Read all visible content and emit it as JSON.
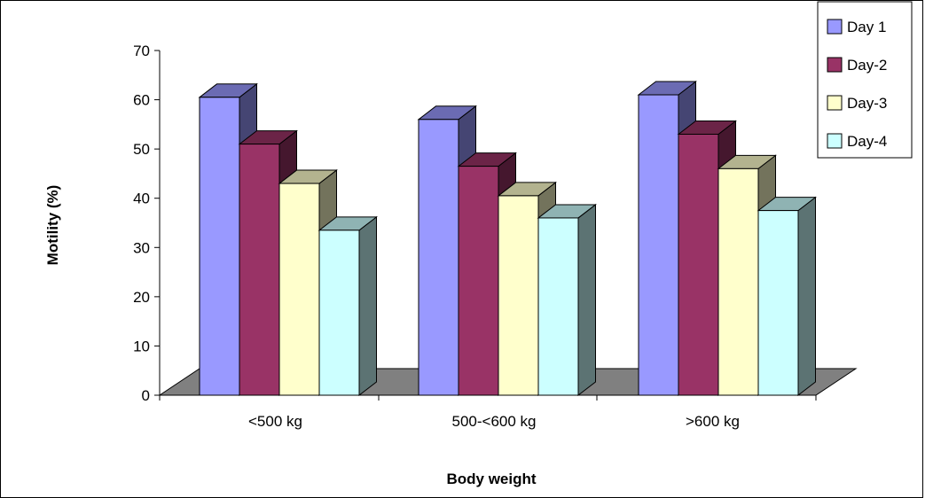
{
  "chart_data": {
    "type": "bar",
    "categories": [
      "<500 kg",
      "500-<600 kg",
      ">600 kg"
    ],
    "series": [
      {
        "name": "Day 1",
        "values": [
          60.5,
          56,
          61
        ],
        "color": "#9999ff"
      },
      {
        "name": "Day-2",
        "values": [
          51,
          46.5,
          53
        ],
        "color": "#993366"
      },
      {
        "name": "Day-3",
        "values": [
          43,
          40.5,
          46
        ],
        "color": "#ffffcc"
      },
      {
        "name": "Day-4",
        "values": [
          33.5,
          36,
          37.5
        ],
        "color": "#ccffff"
      }
    ],
    "xlabel": "Body weight",
    "ylabel": "Motility (%)",
    "ylim": [
      0,
      70
    ],
    "yticks": [
      0,
      10,
      20,
      30,
      40,
      50,
      60,
      70
    ],
    "legend_position": "top-right",
    "grid": false,
    "style": "3d-clustered"
  }
}
